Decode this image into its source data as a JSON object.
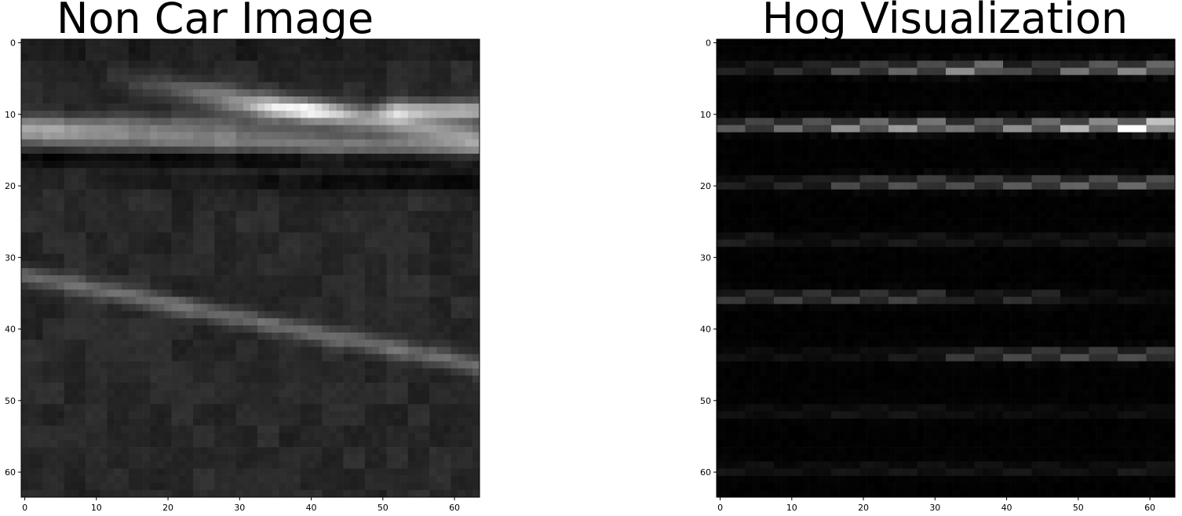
{
  "chart_data": [
    {
      "type": "heatmap",
      "title": "Non Car Image",
      "xlim": [
        -0.5,
        63.5
      ],
      "ylim": [
        -0.5,
        63.5
      ],
      "y_inverted": true,
      "xticks": [
        0,
        10,
        20,
        30,
        40,
        50,
        60
      ],
      "yticks": [
        0,
        10,
        20,
        30,
        40,
        50,
        60
      ],
      "colormap": "gray",
      "grid": false,
      "content": "grayscale road image 64x64; bright diagonal streaks across upper rows and a lane line descending from row 32 at x=0 to row 45 at x=63"
    },
    {
      "type": "heatmap",
      "title": "Hog Visualization",
      "xlim": [
        -0.5,
        63.5
      ],
      "ylim": [
        -0.5,
        63.5
      ],
      "y_inverted": true,
      "xticks": [
        0,
        10,
        20,
        30,
        40,
        50,
        60
      ],
      "yticks": [
        0,
        10,
        20,
        30,
        40,
        50,
        60
      ],
      "colormap": "gray",
      "grid": false,
      "cell_size": 8,
      "hog_intensity": [
        [
          0.12,
          0.18,
          0.3,
          0.38,
          0.55,
          0.28,
          0.45,
          0.52
        ],
        [
          0.35,
          0.42,
          0.55,
          0.6,
          0.45,
          0.55,
          0.7,
          1.0
        ],
        [
          0.12,
          0.15,
          0.28,
          0.32,
          0.3,
          0.35,
          0.38,
          0.4
        ],
        [
          0.12,
          0.06,
          0.08,
          0.1,
          0.08,
          0.08,
          0.08,
          0.1
        ],
        [
          0.22,
          0.25,
          0.25,
          0.25,
          0.12,
          0.18,
          0.06,
          0.05
        ],
        [
          0.06,
          0.06,
          0.06,
          0.1,
          0.22,
          0.28,
          0.3,
          0.3
        ],
        [
          0.06,
          0.06,
          0.08,
          0.08,
          0.05,
          0.05,
          0.04,
          0.06
        ],
        [
          0.08,
          0.06,
          0.08,
          0.08,
          0.08,
          0.08,
          0.06,
          0.1
        ]
      ]
    }
  ]
}
